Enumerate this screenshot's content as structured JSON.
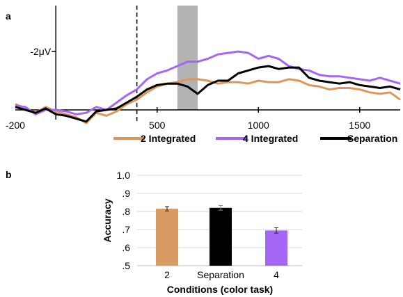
{
  "chart_data": [
    {
      "panel": "a",
      "type": "line",
      "ylabel": "-2μV",
      "xticks": [
        "-200",
        "500",
        "1000",
        "1500"
      ],
      "x": [
        -200,
        -150,
        -100,
        -50,
        0,
        50,
        100,
        150,
        200,
        250,
        300,
        350,
        400,
        450,
        500,
        550,
        600,
        650,
        700,
        750,
        800,
        850,
        900,
        950,
        1000,
        1050,
        1100,
        1150,
        1200,
        1250,
        1300,
        1350,
        1400,
        1450,
        1500,
        1550,
        1600,
        1650,
        1700
      ],
      "xlim": [
        -200,
        1700
      ],
      "ylim": [
        0.3,
        -3.4
      ],
      "markers": {
        "dashed_line_x": 400,
        "shaded_window": [
          600,
          700
        ]
      },
      "legend": {
        "position": "bottom"
      },
      "series": [
        {
          "name": "2 Integrated",
          "color": "#E0955A",
          "values": [
            -0.2,
            -0.05,
            0.1,
            -0.1,
            0.05,
            0.15,
            0.25,
            0.45,
            0.1,
            0.2,
            0.05,
            -0.2,
            -0.35,
            -0.6,
            -0.8,
            -0.9,
            -0.95,
            -1.05,
            -1.05,
            -1.0,
            -0.9,
            -0.95,
            -0.95,
            -0.9,
            -1.0,
            -0.95,
            -0.95,
            -1.05,
            -1.0,
            -0.85,
            -0.8,
            -0.7,
            -0.75,
            -0.75,
            -0.7,
            -0.6,
            -0.55,
            -0.6,
            -0.35
          ]
        },
        {
          "name": "4 Integrated",
          "color": "#A566F5",
          "values": [
            -0.15,
            -0.1,
            0.15,
            0.0,
            0.0,
            0.05,
            0.15,
            0.1,
            -0.1,
            0.0,
            -0.25,
            -0.5,
            -0.7,
            -1.05,
            -1.25,
            -1.35,
            -1.5,
            -1.65,
            -1.65,
            -1.75,
            -1.9,
            -1.95,
            -2.0,
            -1.95,
            -1.75,
            -1.85,
            -1.75,
            -1.5,
            -1.4,
            -1.35,
            -1.2,
            -1.15,
            -1.15,
            -1.1,
            -1.05,
            -1.0,
            -1.1,
            -1.0,
            -0.9
          ]
        },
        {
          "name": "Separation",
          "color": "#000000",
          "values": [
            -0.1,
            0.0,
            0.1,
            -0.05,
            0.15,
            0.2,
            0.3,
            0.4,
            0.05,
            0.0,
            -0.05,
            -0.25,
            -0.45,
            -0.7,
            -0.85,
            -0.9,
            -0.9,
            -0.8,
            -0.55,
            -0.85,
            -1.0,
            -1.0,
            -1.25,
            -1.35,
            -1.45,
            -1.5,
            -1.4,
            -1.45,
            -1.45,
            -1.1,
            -1.0,
            -0.95,
            -0.9,
            -0.95,
            -0.85,
            -0.8,
            -0.75,
            -0.8,
            -0.7
          ]
        }
      ]
    },
    {
      "panel": "b",
      "type": "bar",
      "categories": [
        "2",
        "Separation",
        "4"
      ],
      "values": [
        0.815,
        0.82,
        0.695
      ],
      "errors": [
        0.012,
        0.013,
        0.015
      ],
      "colors": [
        "#D99A63",
        "#000000",
        "#A566F5"
      ],
      "xlabel": "Conditions (color task)",
      "ylabel": "Accuracy",
      "ylim": [
        0.5,
        1.0
      ],
      "yticks": [
        ".5",
        ".6",
        ".7",
        ".8",
        ".9",
        "1.0"
      ],
      "grid": true
    }
  ],
  "panel_labels": [
    "a",
    "b"
  ]
}
